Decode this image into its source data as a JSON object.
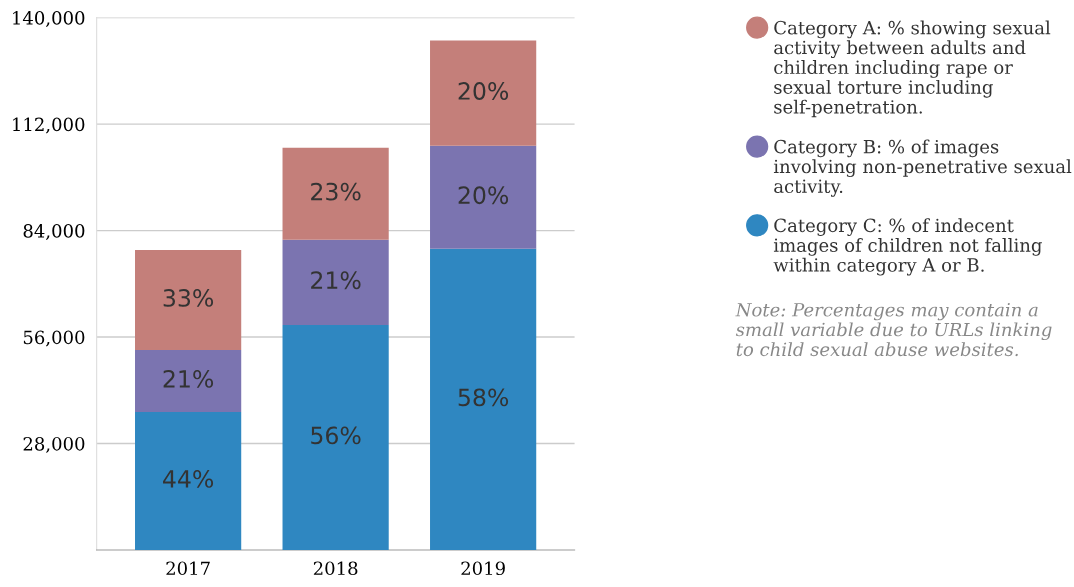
{
  "chart_data": {
    "type": "bar",
    "stacked": true,
    "categories": [
      "2017",
      "2018",
      "2019"
    ],
    "series": [
      {
        "name": "Category C: % of indecent images of children not falling within category A or B.",
        "color": "#2f87c1",
        "values": [
          36300,
          59200,
          79200
        ]
      },
      {
        "name": "Category B: % of images involving non-penetrative sexual activity.",
        "color": "#7b74b0",
        "values": [
          16300,
          22400,
          27100
        ]
      },
      {
        "name": "Category A: % showing sexual activity between adults and children including rape or sexual torture including self-penetration.",
        "color": "#c47f7a",
        "values": [
          26300,
          24200,
          27700
        ]
      }
    ],
    "ylim": [
      0,
      140000
    ],
    "yticks": [
      {
        "value": 28000,
        "label": "28,000"
      },
      {
        "value": 56000,
        "label": "56,000"
      },
      {
        "value": 84000,
        "label": "84,000"
      },
      {
        "value": 112000,
        "label": "112,000"
      },
      {
        "value": 140000,
        "label": "140,000"
      }
    ],
    "grid": "y",
    "legend": "right",
    "annotations": [
      "44%",
      "21%",
      "33%",
      "56%",
      "21%",
      "23%",
      "58%",
      "20%",
      "20%",
      "Note: Percentages may contain a small variable due to URLs linking to child sexual abuse websites."
    ]
  }
}
